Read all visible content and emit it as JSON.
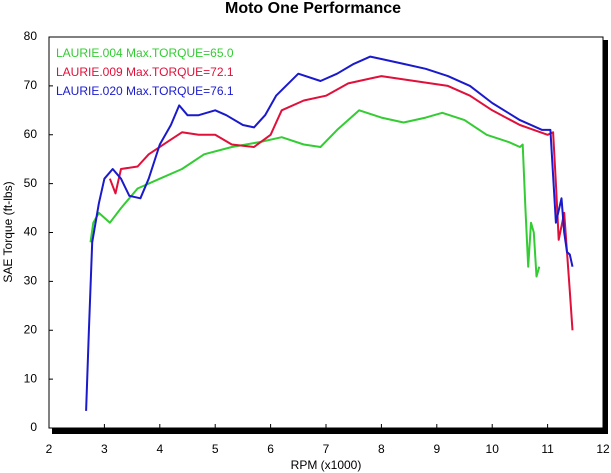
{
  "chart_data": {
    "type": "line",
    "title": "Moto One Performance",
    "x_label": "RPM (x1000)",
    "y_label": "SAE Torque (ft-lbs)",
    "xlim": [
      2,
      12
    ],
    "xticks": [
      2,
      3,
      4,
      5,
      6,
      7,
      8,
      9,
      10,
      11,
      12
    ],
    "ylim": [
      0,
      80
    ],
    "yticks": [
      0,
      10,
      20,
      30,
      40,
      50,
      60,
      70,
      80
    ],
    "grid": false,
    "legend": "top-left",
    "series": [
      {
        "name": "LAURIE.004  Max.TORQUE=65.0",
        "color": "#33cc33",
        "x": [
          2.75,
          2.8,
          2.9,
          3.1,
          3.3,
          3.6,
          4.0,
          4.4,
          4.8,
          5.3,
          5.8,
          6.2,
          6.6,
          6.9,
          7.2,
          7.6,
          8.0,
          8.4,
          8.8,
          9.1,
          9.5,
          9.9,
          10.3,
          10.5,
          10.55,
          10.6,
          10.65,
          10.7,
          10.75,
          10.8,
          10.85
        ],
        "values": [
          38,
          42,
          44,
          42,
          45,
          49,
          51,
          53,
          56,
          57.5,
          58.5,
          59.5,
          58,
          57.5,
          61,
          65,
          63.5,
          62.5,
          63.5,
          64.5,
          63,
          60,
          58.5,
          57.5,
          58,
          45,
          33,
          42,
          40,
          31,
          33
        ]
      },
      {
        "name": "LAURIE.009  Max.TORQUE=72.1",
        "color": "#e0103a",
        "x": [
          3.1,
          3.2,
          3.3,
          3.6,
          3.8,
          4.2,
          4.4,
          4.7,
          5.0,
          5.3,
          5.7,
          6.0,
          6.2,
          6.6,
          7.0,
          7.4,
          7.8,
          8.0,
          8.6,
          9.2,
          9.6,
          10.0,
          10.5,
          11.0,
          11.1,
          11.15,
          11.2,
          11.3,
          11.35,
          11.4,
          11.45
        ],
        "values": [
          51,
          48,
          53,
          53.5,
          56,
          59,
          60.5,
          60,
          60,
          58,
          57.5,
          60,
          65,
          67,
          68,
          70.5,
          71.5,
          72,
          71,
          70,
          68,
          65,
          62,
          60,
          60.5,
          50,
          38.5,
          44,
          36,
          28,
          20
        ]
      },
      {
        "name": "LAURIE.020  Max.TORQUE=76.1",
        "color": "#1a1acc",
        "x": [
          2.67,
          2.72,
          2.78,
          2.9,
          3.0,
          3.15,
          3.3,
          3.45,
          3.65,
          3.8,
          4.0,
          4.2,
          4.35,
          4.5,
          4.7,
          5.0,
          5.2,
          5.5,
          5.7,
          5.9,
          6.1,
          6.5,
          6.9,
          7.2,
          7.5,
          7.8,
          8.0,
          8.4,
          8.8,
          9.2,
          9.6,
          10.0,
          10.5,
          10.9,
          11.05,
          11.15,
          11.25,
          11.3,
          11.35,
          11.4,
          11.45
        ],
        "values": [
          3.5,
          20,
          38,
          46,
          51,
          53,
          51,
          47.5,
          47,
          51,
          58,
          62,
          66,
          64,
          64,
          65,
          64,
          62,
          61.5,
          64,
          68,
          72.5,
          71,
          72.5,
          74.5,
          76,
          75.5,
          74.5,
          73.5,
          72,
          70,
          66.5,
          63,
          61,
          61,
          42,
          47,
          40,
          36,
          35.5,
          33
        ]
      }
    ]
  }
}
